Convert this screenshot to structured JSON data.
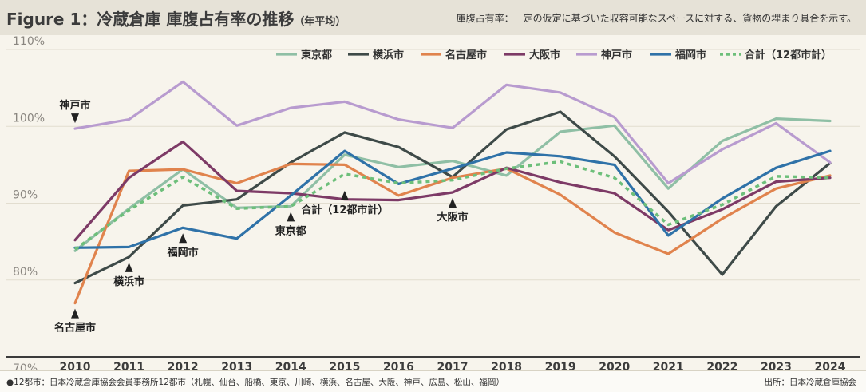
{
  "header": {
    "title_main": "Figure 1：冷蔵倉庫 庫腹占有率の推移",
    "title_suffix": "（年平均）",
    "subtitle": "庫腹占有率：一定の仮定に基づいた収容可能なスペースに対する、貨物の埋まり具合を示す。"
  },
  "footer": {
    "note": "●12都市：日本冷蔵倉庫協会会員事務所12都市（札幌、仙台、船橋、東京、川崎、横浜、名古屋、大阪、神戸、広島、松山、福岡）",
    "source": "出所：日本冷蔵倉庫協会"
  },
  "chart_data": {
    "type": "line",
    "x": [
      2010,
      2011,
      2012,
      2013,
      2014,
      2015,
      2016,
      2017,
      2018,
      2019,
      2020,
      2021,
      2022,
      2023,
      2024
    ],
    "xlim": [
      2010,
      2024
    ],
    "ylim": [
      70,
      110
    ],
    "yticks": [
      {
        "value": 110,
        "label": "110%"
      },
      {
        "value": 100,
        "label": "100%"
      },
      {
        "value": 90,
        "label": "90%"
      },
      {
        "value": 80,
        "label": "80%"
      },
      {
        "value": 70,
        "label": "70%"
      }
    ],
    "grid": true,
    "legend_position": "top-right",
    "series": [
      {
        "name": "東京都",
        "color": "#8fbfa5",
        "dashed": false,
        "values": [
          83.8,
          89.3,
          94.4,
          89.4,
          89.6,
          96.3,
          94.7,
          95.5,
          93.6,
          99.3,
          100.1,
          91.9,
          98.1,
          101.0,
          100.7
        ]
      },
      {
        "name": "横浜市",
        "color": "#3e4a48",
        "dashed": false,
        "values": [
          79.6,
          83.0,
          89.7,
          90.5,
          95.3,
          99.2,
          97.3,
          93.4,
          99.6,
          101.9,
          96.1,
          88.9,
          80.7,
          89.6,
          95.2
        ]
      },
      {
        "name": "名古屋市",
        "color": "#e0834d",
        "dashed": false,
        "values": [
          77.0,
          94.2,
          94.4,
          92.6,
          95.1,
          95.0,
          91.0,
          93.3,
          94.5,
          91.1,
          86.2,
          83.4,
          88.0,
          91.9,
          93.6
        ]
      },
      {
        "name": "大阪市",
        "color": "#7d3a66",
        "dashed": false,
        "values": [
          85.2,
          93.3,
          98.0,
          91.6,
          91.3,
          90.5,
          90.4,
          91.4,
          94.6,
          92.7,
          91.3,
          86.5,
          89.2,
          92.8,
          93.3
        ]
      },
      {
        "name": "神戸市",
        "color": "#b89bcf",
        "dashed": false,
        "values": [
          99.7,
          100.9,
          105.8,
          100.1,
          102.4,
          103.2,
          100.9,
          99.8,
          105.4,
          104.4,
          101.2,
          92.6,
          97.0,
          100.4,
          95.3
        ]
      },
      {
        "name": "福岡市",
        "color": "#2f72a8",
        "dashed": false,
        "values": [
          84.2,
          84.3,
          86.8,
          85.4,
          91.0,
          96.8,
          92.5,
          94.5,
          96.6,
          96.1,
          95.0,
          85.8,
          90.6,
          94.6,
          96.8
        ]
      },
      {
        "name": "合計（12都市計）",
        "color": "#6dbf7a",
        "dashed": true,
        "values": [
          84.0,
          89.1,
          93.4,
          89.3,
          89.6,
          93.8,
          92.6,
          93.0,
          94.5,
          95.4,
          93.3,
          87.2,
          89.8,
          93.5,
          93.3
        ]
      }
    ],
    "annotations": [
      {
        "label": "神戸市",
        "year": 2010,
        "value": 99.7,
        "side": "above"
      },
      {
        "label": "名古屋市",
        "year": 2010,
        "value": 77.0,
        "side": "below"
      },
      {
        "label": "横浜市",
        "year": 2011,
        "value": 83.0,
        "side": "below"
      },
      {
        "label": "福岡市",
        "year": 2012,
        "value": 86.8,
        "side": "below"
      },
      {
        "label": "東京都",
        "year": 2014,
        "value": 89.6,
        "side": "below"
      },
      {
        "label": "合計（12都市計）",
        "year": 2015,
        "value": 93.8,
        "side": "below"
      },
      {
        "label": "大阪市",
        "year": 2017,
        "value": 91.4,
        "side": "below"
      }
    ]
  }
}
